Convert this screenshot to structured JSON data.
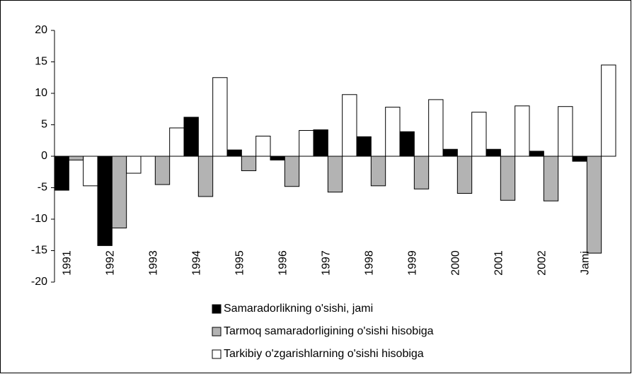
{
  "chart_data": {
    "type": "bar",
    "categories": [
      "1991",
      "1992",
      "1993",
      "1994",
      "1995",
      "1996",
      "1997",
      "1998",
      "1999",
      "2000",
      "2001",
      "2002",
      "Jami"
    ],
    "series": [
      {
        "name": "Samaradorlikning o'sishi, jami",
        "color": "#000000",
        "values": [
          -5.4,
          -14.2,
          0,
          6.2,
          1.0,
          -0.6,
          4.2,
          3.1,
          3.9,
          1.1,
          1.1,
          0.8,
          -0.8
        ]
      },
      {
        "name": "Tarmoq samaradorligining o'sishi hisobiga",
        "color": "#b3b3b3",
        "values": [
          -0.6,
          -11.4,
          -4.5,
          -6.4,
          -2.3,
          -4.8,
          -5.7,
          -4.7,
          -5.2,
          -5.9,
          -7.0,
          -7.1,
          -15.4
        ]
      },
      {
        "name": "Tarkibiy o'zgarishlarning o'sishi hisobiga",
        "color": "#ffffff",
        "values": [
          -4.7,
          -2.7,
          4.5,
          12.5,
          3.2,
          4.1,
          9.8,
          7.8,
          9.0,
          7.0,
          8.0,
          7.9,
          14.5
        ]
      }
    ],
    "ylim": [
      -20,
      20
    ],
    "yticks": [
      -20,
      -15,
      -10,
      -5,
      0,
      5,
      10,
      15,
      20
    ]
  }
}
